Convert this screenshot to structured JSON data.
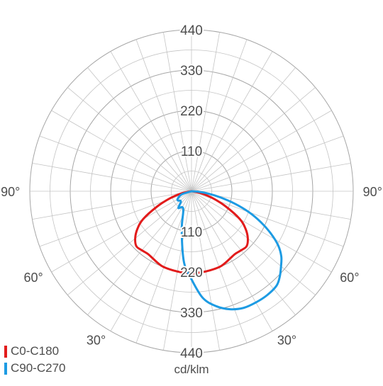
{
  "chart_data": {
    "type": "polar",
    "unit_label": "cd/klm",
    "radial_max": 440,
    "radial_ticks": [
      110,
      220,
      330,
      440
    ],
    "angle_labels": [
      "90°",
      "60°",
      "30°",
      "30°",
      "60°",
      "90°"
    ],
    "grid": true,
    "legend_position": "bottom-left",
    "series": [
      {
        "name": "C0-C180",
        "color": "#e21b1b",
        "points": [
          {
            "theta": -90,
            "r": 0
          },
          {
            "theta": -84,
            "r": 3
          },
          {
            "theta": -78,
            "r": 28
          },
          {
            "theta": -72,
            "r": 60
          },
          {
            "theta": -66,
            "r": 102
          },
          {
            "theta": -60,
            "r": 152
          },
          {
            "theta": -55,
            "r": 180
          },
          {
            "theta": -50,
            "r": 200
          },
          {
            "theta": -45,
            "r": 212
          },
          {
            "theta": -40,
            "r": 210
          },
          {
            "theta": -35,
            "r": 208
          },
          {
            "theta": -30,
            "r": 211
          },
          {
            "theta": -25,
            "r": 216
          },
          {
            "theta": -20,
            "r": 220
          },
          {
            "theta": -10,
            "r": 222
          },
          {
            "theta": 0,
            "r": 224
          },
          {
            "theta": 10,
            "r": 222
          },
          {
            "theta": 20,
            "r": 220
          },
          {
            "theta": 25,
            "r": 216
          },
          {
            "theta": 30,
            "r": 211
          },
          {
            "theta": 35,
            "r": 208
          },
          {
            "theta": 40,
            "r": 210
          },
          {
            "theta": 45,
            "r": 212
          },
          {
            "theta": 50,
            "r": 200
          },
          {
            "theta": 55,
            "r": 180
          },
          {
            "theta": 60,
            "r": 152
          },
          {
            "theta": 66,
            "r": 102
          },
          {
            "theta": 72,
            "r": 60
          },
          {
            "theta": 78,
            "r": 28
          },
          {
            "theta": 84,
            "r": 3
          },
          {
            "theta": 90,
            "r": 0
          }
        ]
      },
      {
        "name": "C90-C270",
        "color": "#1d9be3",
        "points": [
          {
            "theta": -90,
            "r": 0
          },
          {
            "theta": -72,
            "r": 28
          },
          {
            "theta": -62,
            "r": 42
          },
          {
            "theta": -56,
            "r": 45
          },
          {
            "theta": -50,
            "r": 40
          },
          {
            "theta": -44,
            "r": 42
          },
          {
            "theta": -38,
            "r": 58
          },
          {
            "theta": -30,
            "r": 50
          },
          {
            "theta": -22,
            "r": 60
          },
          {
            "theta": -14,
            "r": 110
          },
          {
            "theta": -6,
            "r": 195
          },
          {
            "theta": 0,
            "r": 240
          },
          {
            "theta": 6,
            "r": 292
          },
          {
            "theta": 12,
            "r": 320
          },
          {
            "theta": 18,
            "r": 338
          },
          {
            "theta": 24,
            "r": 348
          },
          {
            "theta": 30,
            "r": 350
          },
          {
            "theta": 36,
            "r": 350
          },
          {
            "theta": 42,
            "r": 346
          },
          {
            "theta": 46,
            "r": 334
          },
          {
            "theta": 50,
            "r": 318
          },
          {
            "theta": 54,
            "r": 302
          },
          {
            "theta": 58,
            "r": 278
          },
          {
            "theta": 62,
            "r": 244
          },
          {
            "theta": 66,
            "r": 206
          },
          {
            "theta": 70,
            "r": 166
          },
          {
            "theta": 74,
            "r": 122
          },
          {
            "theta": 78,
            "r": 80
          },
          {
            "theta": 82,
            "r": 46
          },
          {
            "theta": 86,
            "r": 18
          },
          {
            "theta": 90,
            "r": 0
          }
        ]
      }
    ]
  }
}
